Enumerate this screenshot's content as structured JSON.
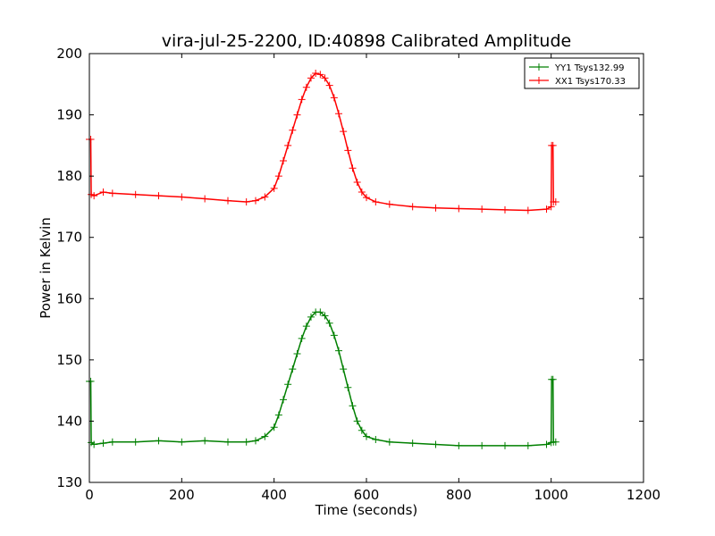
{
  "chart_data": {
    "type": "line",
    "title": "vira-jul-25-2200, ID:40898 Calibrated Amplitude",
    "xlabel": "Time (seconds)",
    "ylabel": "Power in Kelvin",
    "xlim": [
      0,
      1200
    ],
    "ylim": [
      130,
      200
    ],
    "xticks": [
      "0",
      "200",
      "400",
      "600",
      "800",
      "1000",
      "1200"
    ],
    "yticks": [
      "130",
      "140",
      "150",
      "160",
      "170",
      "180",
      "190",
      "200"
    ],
    "grid": false,
    "legend_position": "top-right",
    "marker": "+",
    "series": [
      {
        "name": "YY1 Tsys132.99",
        "color": "#008000",
        "points": [
          [
            0,
            146.5
          ],
          [
            3,
            146.5
          ],
          [
            4,
            136.5
          ],
          [
            10,
            136.2
          ],
          [
            30,
            136.4
          ],
          [
            50,
            136.6
          ],
          [
            100,
            136.6
          ],
          [
            150,
            136.8
          ],
          [
            200,
            136.6
          ],
          [
            250,
            136.8
          ],
          [
            300,
            136.6
          ],
          [
            340,
            136.6
          ],
          [
            360,
            136.8
          ],
          [
            380,
            137.5
          ],
          [
            400,
            139.0
          ],
          [
            410,
            141.0
          ],
          [
            420,
            143.5
          ],
          [
            430,
            146.0
          ],
          [
            440,
            148.5
          ],
          [
            450,
            151.0
          ],
          [
            460,
            153.5
          ],
          [
            470,
            155.5
          ],
          [
            480,
            157.0
          ],
          [
            490,
            157.8
          ],
          [
            500,
            157.8
          ],
          [
            510,
            157.2
          ],
          [
            520,
            156.0
          ],
          [
            530,
            154.0
          ],
          [
            540,
            151.5
          ],
          [
            550,
            148.5
          ],
          [
            560,
            145.5
          ],
          [
            570,
            142.5
          ],
          [
            580,
            140.0
          ],
          [
            590,
            138.5
          ],
          [
            600,
            137.5
          ],
          [
            620,
            137.0
          ],
          [
            650,
            136.6
          ],
          [
            700,
            136.4
          ],
          [
            750,
            136.2
          ],
          [
            800,
            136.0
          ],
          [
            850,
            136.0
          ],
          [
            900,
            136.0
          ],
          [
            950,
            136.0
          ],
          [
            990,
            136.2
          ],
          [
            1000,
            136.5
          ],
          [
            1001,
            146.8
          ],
          [
            1004,
            146.8
          ],
          [
            1005,
            136.6
          ],
          [
            1010,
            136.6
          ]
        ]
      },
      {
        "name": "XX1 Tsys170.33",
        "color": "#ff0000",
        "points": [
          [
            0,
            186.0
          ],
          [
            3,
            186.0
          ],
          [
            4,
            177.0
          ],
          [
            10,
            176.8
          ],
          [
            30,
            177.4
          ],
          [
            50,
            177.2
          ],
          [
            100,
            177.0
          ],
          [
            150,
            176.8
          ],
          [
            200,
            176.6
          ],
          [
            250,
            176.3
          ],
          [
            300,
            176.0
          ],
          [
            340,
            175.8
          ],
          [
            360,
            176.0
          ],
          [
            380,
            176.6
          ],
          [
            400,
            178.0
          ],
          [
            410,
            180.0
          ],
          [
            420,
            182.5
          ],
          [
            430,
            185.0
          ],
          [
            440,
            187.5
          ],
          [
            450,
            190.0
          ],
          [
            460,
            192.5
          ],
          [
            470,
            194.5
          ],
          [
            480,
            196.0
          ],
          [
            490,
            196.8
          ],
          [
            500,
            196.6
          ],
          [
            510,
            196.0
          ],
          [
            520,
            194.8
          ],
          [
            530,
            192.8
          ],
          [
            540,
            190.2
          ],
          [
            550,
            187.3
          ],
          [
            560,
            184.2
          ],
          [
            570,
            181.3
          ],
          [
            580,
            179.0
          ],
          [
            590,
            177.4
          ],
          [
            600,
            176.5
          ],
          [
            620,
            175.8
          ],
          [
            650,
            175.4
          ],
          [
            700,
            175.0
          ],
          [
            750,
            174.8
          ],
          [
            800,
            174.7
          ],
          [
            850,
            174.6
          ],
          [
            900,
            174.5
          ],
          [
            950,
            174.4
          ],
          [
            990,
            174.6
          ],
          [
            1000,
            175.0
          ],
          [
            1001,
            185.0
          ],
          [
            1004,
            185.0
          ],
          [
            1005,
            175.8
          ],
          [
            1010,
            175.8
          ]
        ]
      }
    ]
  }
}
